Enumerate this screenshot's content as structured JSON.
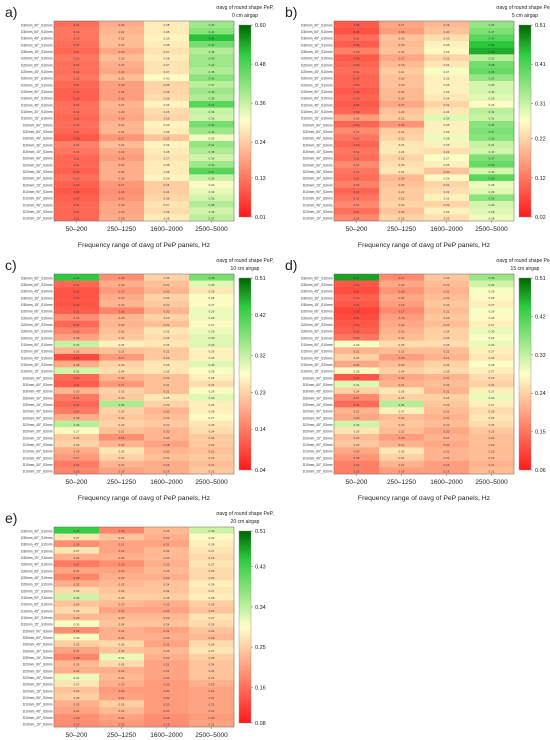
{
  "figure": {
    "panel_letters": [
      "a)",
      "b)",
      "c)",
      "d)",
      "e)"
    ],
    "category_labels": [
      "50–200",
      "250–1250",
      "1600–2000",
      "2500–5000"
    ],
    "row_labels": [
      "D30mm_90°_S10mm",
      "D30mm_60°_S10mm",
      "D30mm_45°_S10mm",
      "D30mm_30°_S10mm",
      "D30mm_15°_S10mm",
      "D20mm_90°_S10mm",
      "D20mm_60°_S10mm",
      "D20mm_45°_S10mm",
      "D20mm_30°_S10mm",
      "D20mm_15°_S10mm",
      "D10mm_90°_S10mm",
      "D10mm_60°_S10mm",
      "D10mm_45°_S10mm",
      "D10mm_30°_S10mm",
      "D10mm_15°_S10mm",
      "D30mm_90°_S3mm",
      "D30mm_60°_S3mm",
      "D30mm_45°_S3mm",
      "D30mm_30°_S3mm",
      "D30mm_15°_S3mm",
      "D20mm_90°_S3mm",
      "D20mm_60°_S3mm",
      "D20mm_45°_S3mm",
      "D20mm_30°_S3mm",
      "D20mm_15°_S3mm",
      "D10mm_90°_S3mm",
      "D10mm_60°_S3mm",
      "D10mm_45°_S3mm",
      "D10mm_30°_S3mm",
      "D10mm_15°_S3mm"
    ],
    "colorbar_title_lines": [
      "σavg of round shape PeP,"
    ],
    "x_axis_label": "Frequency range of σavg of PeP panels, Hz"
  },
  "colors": {
    "low": "#ff1a1a",
    "mid": "#ffffc8",
    "high": "#2ecc40",
    "top": "#006400"
  },
  "chart_data": [
    {
      "type": "heatmap",
      "panel": "a)",
      "airgap": "0 cm airgap",
      "title": "σavg of round shape PeP, 0 cm airgap",
      "xlabel": "Frequency range of σavg of PeP panels, Hz",
      "categories": [
        "50–200",
        "250–1250",
        "1600–2000",
        "2500–5000"
      ],
      "colorbar_ticks": [
        0.01,
        0.13,
        0.24,
        0.36,
        0.48,
        0.6
      ],
      "vmin": 0.01,
      "vmax": 0.6,
      "values": [
        [
          0.12,
          0.2,
          0.28,
          0.4
        ],
        [
          0.13,
          0.21,
          0.28,
          0.42
        ],
        [
          0.13,
          0.22,
          0.29,
          0.52
        ],
        [
          0.12,
          0.22,
          0.28,
          0.44
        ],
        [
          0.11,
          0.19,
          0.27,
          0.38
        ],
        [
          0.13,
          0.22,
          0.28,
          0.4
        ],
        [
          0.12,
          0.2,
          0.27,
          0.4
        ],
        [
          0.12,
          0.19,
          0.27,
          0.38
        ],
        [
          0.13,
          0.22,
          0.3,
          0.42
        ],
        [
          0.11,
          0.18,
          0.25,
          0.37
        ],
        [
          0.1,
          0.18,
          0.25,
          0.4
        ],
        [
          0.1,
          0.18,
          0.26,
          0.38
        ],
        [
          0.12,
          0.21,
          0.29,
          0.47
        ],
        [
          0.12,
          0.2,
          0.26,
          0.36
        ],
        [
          0.11,
          0.19,
          0.25,
          0.35
        ],
        [
          0.12,
          0.21,
          0.29,
          0.44
        ],
        [
          0.11,
          0.21,
          0.28,
          0.4
        ],
        [
          0.09,
          0.17,
          0.23,
          0.32
        ],
        [
          0.14,
          0.22,
          0.29,
          0.41
        ],
        [
          0.13,
          0.19,
          0.28,
          0.38
        ],
        [
          0.11,
          0.18,
          0.27,
          0.35
        ],
        [
          0.11,
          0.2,
          0.28,
          0.4
        ],
        [
          0.1,
          0.2,
          0.28,
          0.47
        ],
        [
          0.12,
          0.2,
          0.29,
          0.36
        ],
        [
          0.1,
          0.17,
          0.24,
          0.3
        ],
        [
          0.09,
          0.16,
          0.24,
          0.33
        ],
        [
          0.1,
          0.17,
          0.25,
          0.35
        ],
        [
          0.11,
          0.19,
          0.27,
          0.38
        ],
        [
          0.11,
          0.19,
          0.26,
          0.35
        ],
        [
          0.11,
          0.2,
          0.28,
          0.37
        ]
      ]
    },
    {
      "type": "heatmap",
      "panel": "b)",
      "airgap": "5 cm airgap",
      "title": "σavg of round shape PeP, 5 cm airgap",
      "xlabel": "Frequency range of σavg of PeP panels, Hz",
      "categories": [
        "50–200",
        "250–1250",
        "1600–2000",
        "2500–5000"
      ],
      "colorbar_ticks": [
        0.02,
        0.12,
        0.22,
        0.31,
        0.41,
        0.51
      ],
      "vmin": 0.02,
      "vmax": 0.51,
      "values": [
        [
          0.09,
          0.17,
          0.19,
          0.35
        ],
        [
          0.08,
          0.16,
          0.2,
          0.37
        ],
        [
          0.11,
          0.2,
          0.23,
          0.4
        ],
        [
          0.09,
          0.19,
          0.25,
          0.44
        ],
        [
          0.13,
          0.2,
          0.26,
          0.46
        ],
        [
          0.09,
          0.17,
          0.22,
          0.32
        ],
        [
          0.1,
          0.19,
          0.24,
          0.38
        ],
        [
          0.11,
          0.21,
          0.27,
          0.39
        ],
        [
          0.1,
          0.2,
          0.25,
          0.35
        ],
        [
          0.1,
          0.2,
          0.25,
          0.3
        ],
        [
          0.09,
          0.19,
          0.25,
          0.3
        ],
        [
          0.1,
          0.19,
          0.24,
          0.29
        ],
        [
          0.09,
          0.17,
          0.22,
          0.26
        ],
        [
          0.1,
          0.2,
          0.24,
          0.32
        ],
        [
          0.16,
          0.21,
          0.29,
          0.31
        ],
        [
          0.1,
          0.15,
          0.25,
          0.36
        ],
        [
          0.14,
          0.21,
          0.25,
          0.37
        ],
        [
          0.12,
          0.22,
          0.28,
          0.36
        ],
        [
          0.1,
          0.24,
          0.25,
          0.31
        ],
        [
          0.12,
          0.24,
          0.23,
          0.3
        ],
        [
          0.11,
          0.22,
          0.27,
          0.37
        ],
        [
          0.14,
          0.23,
          0.25,
          0.39
        ],
        [
          0.12,
          0.24,
          0.2,
          0.3
        ],
        [
          0.11,
          0.19,
          0.26,
          0.4
        ],
        [
          0.13,
          0.2,
          0.22,
          0.28
        ],
        [
          0.1,
          0.21,
          0.23,
          0.29
        ],
        [
          0.12,
          0.21,
          0.25,
          0.36
        ],
        [
          0.14,
          0.22,
          0.22,
          0.3
        ],
        [
          0.11,
          0.2,
          0.25,
          0.29
        ],
        [
          0.14,
          0.22,
          0.23,
          0.28
        ]
      ]
    },
    {
      "type": "heatmap",
      "panel": "c)",
      "airgap": "10 cm airgap",
      "title": "σavg of round shape PeP, 10 cm airgap",
      "xlabel": "Frequency range of σavg of PeP panels, Hz",
      "categories": [
        "50–200",
        "250–1250",
        "1600–2000",
        "2500–5000"
      ],
      "colorbar_ticks": [
        0.04,
        0.14,
        0.23,
        0.32,
        0.42,
        0.51
      ],
      "vmin": 0.04,
      "vmax": 0.51,
      "values": [
        [
          0.44,
          0.16,
          0.23,
          0.38
        ],
        [
          0.12,
          0.19,
          0.21,
          0.3
        ],
        [
          0.1,
          0.17,
          0.2,
          0.25
        ],
        [
          0.1,
          0.19,
          0.23,
          0.28
        ],
        [
          0.1,
          0.2,
          0.22,
          0.27
        ],
        [
          0.11,
          0.15,
          0.2,
          0.29
        ],
        [
          0.16,
          0.2,
          0.23,
          0.29
        ],
        [
          0.12,
          0.2,
          0.21,
          0.27
        ],
        [
          0.15,
          0.21,
          0.25,
          0.29
        ],
        [
          0.18,
          0.22,
          0.24,
          0.3
        ],
        [
          0.32,
          0.26,
          0.25,
          0.3
        ],
        [
          0.2,
          0.21,
          0.22,
          0.26
        ],
        [
          0.09,
          0.17,
          0.22,
          0.26
        ],
        [
          0.19,
          0.23,
          0.25,
          0.3
        ],
        [
          0.31,
          0.24,
          0.25,
          0.28
        ],
        [
          0.12,
          0.2,
          0.21,
          0.26
        ],
        [
          0.11,
          0.17,
          0.21,
          0.24
        ],
        [
          0.2,
          0.23,
          0.21,
          0.28
        ],
        [
          0.14,
          0.22,
          0.25,
          0.3
        ],
        [
          0.12,
          0.34,
          0.23,
          0.26
        ],
        [
          0.14,
          0.23,
          0.2,
          0.26
        ],
        [
          0.19,
          0.22,
          0.21,
          0.27
        ],
        [
          0.33,
          0.23,
          0.22,
          0.25
        ],
        [
          0.27,
          0.21,
          0.2,
          0.24
        ],
        [
          0.22,
          0.16,
          0.2,
          0.22
        ],
        [
          0.23,
          0.2,
          0.18,
          0.22
        ],
        [
          0.19,
          0.25,
          0.2,
          0.21
        ],
        [
          0.17,
          0.23,
          0.21,
          0.22
        ],
        [
          0.14,
          0.2,
          0.19,
          0.21
        ],
        [
          0.15,
          0.18,
          0.19,
          0.22
        ]
      ]
    },
    {
      "type": "heatmap",
      "panel": "d)",
      "airgap": "15 cm airgap",
      "title": "σavg of round shape PeP, 15 cm airgap",
      "xlabel": "Frequency range of σavg of PeP panels, Hz",
      "categories": [
        "50–200",
        "250–1250",
        "1600–2000",
        "2500–5000"
      ],
      "colorbar_ticks": [
        0.06,
        0.15,
        0.24,
        0.33,
        0.42,
        0.51
      ],
      "vmin": 0.06,
      "vmax": 0.51,
      "values": [
        [
          0.47,
          0.17,
          0.23,
          0.36
        ],
        [
          0.12,
          0.2,
          0.22,
          0.32
        ],
        [
          0.11,
          0.18,
          0.21,
          0.29
        ],
        [
          0.13,
          0.2,
          0.22,
          0.28
        ],
        [
          0.12,
          0.19,
          0.23,
          0.27
        ],
        [
          0.1,
          0.17,
          0.22,
          0.29
        ],
        [
          0.11,
          0.19,
          0.23,
          0.28
        ],
        [
          0.12,
          0.2,
          0.22,
          0.27
        ],
        [
          0.13,
          0.21,
          0.24,
          0.3
        ],
        [
          0.15,
          0.22,
          0.24,
          0.29
        ],
        [
          0.29,
          0.25,
          0.25,
          0.3
        ],
        [
          0.21,
          0.22,
          0.22,
          0.27
        ],
        [
          0.24,
          0.19,
          0.21,
          0.26
        ],
        [
          0.2,
          0.22,
          0.24,
          0.29
        ],
        [
          0.28,
          0.24,
          0.25,
          0.27
        ],
        [
          0.12,
          0.2,
          0.21,
          0.25
        ],
        [
          0.31,
          0.21,
          0.22,
          0.24
        ],
        [
          0.24,
          0.26,
          0.21,
          0.27
        ],
        [
          0.17,
          0.24,
          0.24,
          0.3
        ],
        [
          0.14,
          0.34,
          0.23,
          0.27
        ],
        [
          0.21,
          0.27,
          0.22,
          0.25
        ],
        [
          0.2,
          0.22,
          0.21,
          0.26
        ],
        [
          0.32,
          0.23,
          0.22,
          0.25
        ],
        [
          0.26,
          0.22,
          0.2,
          0.23
        ],
        [
          0.22,
          0.19,
          0.21,
          0.22
        ],
        [
          0.23,
          0.21,
          0.2,
          0.22
        ],
        [
          0.2,
          0.26,
          0.21,
          0.22
        ],
        [
          0.18,
          0.24,
          0.21,
          0.22
        ],
        [
          0.16,
          0.21,
          0.19,
          0.21
        ],
        [
          0.16,
          0.19,
          0.19,
          0.22
        ]
      ]
    },
    {
      "type": "heatmap",
      "panel": "e)",
      "airgap": "20 cm airgap",
      "title": "σavg of round shape PeP, 20 cm airgap",
      "xlabel": "Frequency range of σavg of PeP panels, Hz",
      "categories": [
        "50–200",
        "250–1250",
        "1600–2000",
        "2500–5000"
      ],
      "colorbar_ticks": [
        0.08,
        0.16,
        0.25,
        0.34,
        0.43,
        0.51
      ],
      "vmin": 0.08,
      "vmax": 0.51,
      "values": [
        [
          0.44,
          0.18,
          0.23,
          0.33
        ],
        [
          0.27,
          0.24,
          0.22,
          0.29
        ],
        [
          0.19,
          0.21,
          0.21,
          0.28
        ],
        [
          0.27,
          0.21,
          0.23,
          0.27
        ],
        [
          0.22,
          0.22,
          0.23,
          0.26
        ],
        [
          0.17,
          0.19,
          0.22,
          0.27
        ],
        [
          0.21,
          0.21,
          0.23,
          0.26
        ],
        [
          0.18,
          0.22,
          0.22,
          0.26
        ],
        [
          0.22,
          0.23,
          0.24,
          0.28
        ],
        [
          0.26,
          0.24,
          0.24,
          0.27
        ],
        [
          0.33,
          0.25,
          0.25,
          0.28
        ],
        [
          0.24,
          0.23,
          0.22,
          0.25
        ],
        [
          0.26,
          0.21,
          0.21,
          0.24
        ],
        [
          0.23,
          0.23,
          0.23,
          0.27
        ],
        [
          0.3,
          0.24,
          0.24,
          0.26
        ],
        [
          0.19,
          0.22,
          0.21,
          0.24
        ],
        [
          0.3,
          0.22,
          0.22,
          0.23
        ],
        [
          0.25,
          0.26,
          0.21,
          0.26
        ],
        [
          0.21,
          0.24,
          0.23,
          0.27
        ],
        [
          0.18,
          0.31,
          0.22,
          0.25
        ],
        [
          0.23,
          0.26,
          0.21,
          0.24
        ],
        [
          0.22,
          0.22,
          0.21,
          0.24
        ],
        [
          0.31,
          0.23,
          0.21,
          0.24
        ],
        [
          0.27,
          0.22,
          0.2,
          0.22
        ],
        [
          0.24,
          0.2,
          0.2,
          0.21
        ],
        [
          0.25,
          0.21,
          0.2,
          0.21
        ],
        [
          0.22,
          0.25,
          0.2,
          0.21
        ],
        [
          0.21,
          0.23,
          0.2,
          0.21
        ],
        [
          0.19,
          0.21,
          0.19,
          0.2
        ],
        [
          0.19,
          0.2,
          0.19,
          0.21
        ]
      ]
    }
  ]
}
